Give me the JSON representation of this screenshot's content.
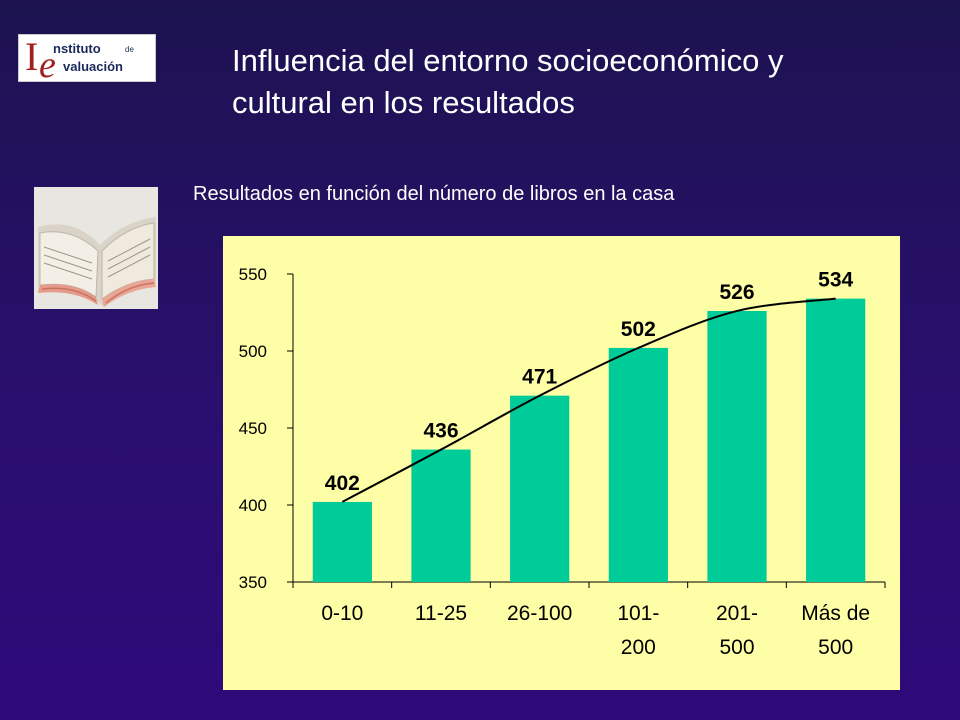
{
  "logo": {
    "line1": "nstituto",
    "de": "de",
    "line2": "valuación",
    "big_i": "I",
    "big_e": "e"
  },
  "title": {
    "line1": "Influencia del entorno socioeconómico y",
    "line2": "cultural en los resultados"
  },
  "subtitle": "Resultados en función del número de libros en la casa",
  "colors": {
    "bar": "#00cc99",
    "panel": "#fefea6",
    "background": "#2a0f6e"
  },
  "chart_data": {
    "type": "bar",
    "categories": [
      [
        "0-10"
      ],
      [
        "11-25"
      ],
      [
        "26-100"
      ],
      [
        "101-",
        "200"
      ],
      [
        "201-",
        "500"
      ],
      [
        "Más de",
        "500"
      ]
    ],
    "values": [
      402,
      436,
      471,
      502,
      526,
      534
    ],
    "data_labels": [
      "402",
      "436",
      "471",
      "502",
      "526",
      "534"
    ],
    "ylim": [
      350,
      550
    ],
    "yticks": [
      350,
      400,
      450,
      500,
      550
    ],
    "trendline": true,
    "grid": false,
    "title": "",
    "xlabel": "",
    "ylabel": ""
  }
}
